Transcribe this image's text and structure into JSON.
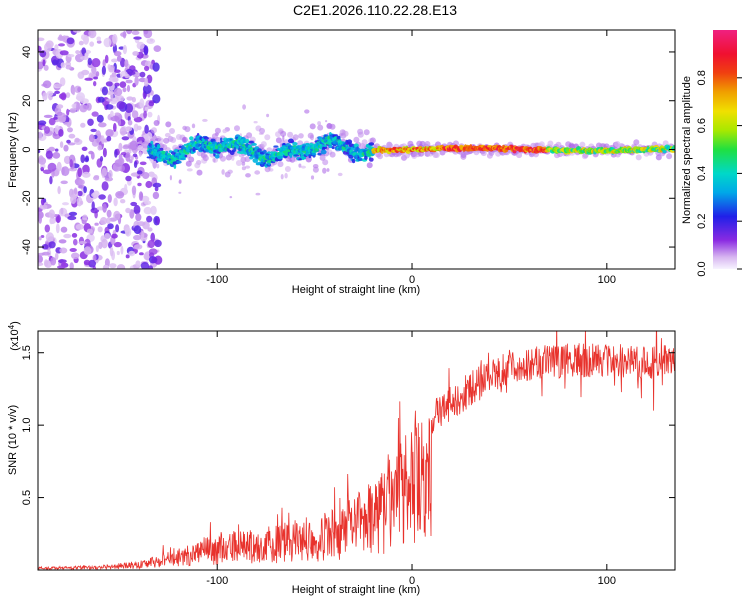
{
  "title": "C2E1.2026.110.22.28.E13",
  "chart_data": [
    {
      "type": "heatmap",
      "xlabel": "Height of straight line (km)",
      "ylabel": "Frequency (Hz)",
      "xlim": [
        -192,
        135
      ],
      "ylim": [
        -49,
        49
      ],
      "xticks": [
        -100,
        0,
        100
      ],
      "yticks": [
        -40,
        -20,
        0,
        20,
        40
      ],
      "colorbar": {
        "label": "Normalized spectral amplitude",
        "range": [
          0,
          1
        ],
        "ticks": [
          0.0,
          0.2,
          0.4,
          0.6,
          0.8
        ]
      },
      "description_regions": [
        {
          "x_from": -192,
          "x_to": -135,
          "freq_spread": 49,
          "amplitude": 0.15
        },
        {
          "x_from": -135,
          "x_to": -20,
          "freq_spread": 8,
          "amplitude": 0.35
        },
        {
          "x_from": -20,
          "x_to": 135,
          "freq_spread": 2,
          "amplitude": 0.9
        }
      ]
    },
    {
      "type": "line",
      "xlabel": "Height of straight line (km)",
      "ylabel": "SNR (10 * v/v)",
      "multiplier": "(x10",
      "multiplier_exp": "4",
      "multiplier_close": ")",
      "xlim": [
        -192,
        135
      ],
      "ylim": [
        0,
        1.65
      ],
      "xticks": [
        -100,
        0,
        100
      ],
      "yticks": [
        0.5,
        1.0,
        1.5
      ],
      "ytick_labels": [
        "0.5",
        "1.0",
        "1.5"
      ],
      "series_color": "#e8322c",
      "envelope": {
        "x": [
          -192,
          -160,
          -140,
          -125,
          -110,
          -90,
          -70,
          -50,
          -35,
          -20,
          -10,
          0,
          10,
          20,
          30,
          40,
          50,
          60,
          80,
          100,
          120,
          135
        ],
        "y": [
          0.02,
          0.03,
          0.06,
          0.12,
          0.2,
          0.26,
          0.3,
          0.36,
          0.42,
          0.6,
          0.78,
          0.95,
          1.05,
          1.15,
          1.25,
          1.33,
          1.4,
          1.42,
          1.45,
          1.45,
          1.43,
          1.45
        ]
      }
    }
  ]
}
